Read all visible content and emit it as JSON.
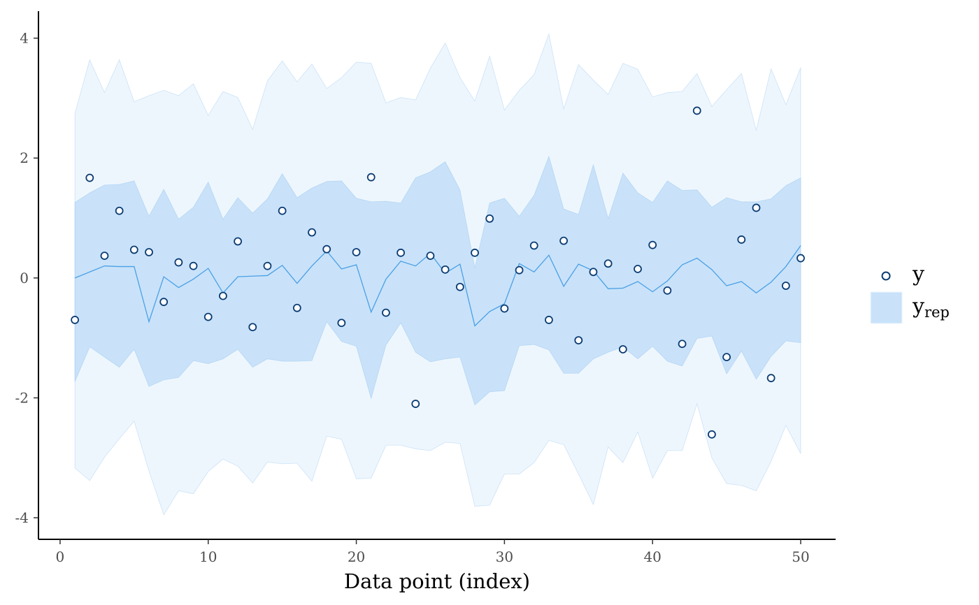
{
  "chart_data": {
    "type": "intervals",
    "xlabel": "Data point (index)",
    "xlim": [
      -1.46,
      52.36
    ],
    "xticks": [
      0,
      10,
      20,
      30,
      40,
      50
    ],
    "ylim": [
      -4.36,
      4.45
    ],
    "yticks": [
      -4,
      -2,
      0,
      2,
      4
    ],
    "x": [
      1,
      2,
      3,
      4,
      5,
      6,
      7,
      8,
      9,
      10,
      11,
      12,
      13,
      14,
      15,
      16,
      17,
      18,
      19,
      20,
      21,
      22,
      23,
      24,
      25,
      26,
      27,
      28,
      29,
      30,
      31,
      32,
      33,
      34,
      35,
      36,
      37,
      38,
      39,
      40,
      41,
      42,
      43,
      44,
      45,
      46,
      47,
      48,
      49,
      50
    ],
    "series": [
      {
        "name": "y",
        "color": "#0b3c73",
        "values": [
          -0.7,
          1.67,
          0.37,
          1.12,
          0.47,
          0.43,
          -0.4,
          0.26,
          0.2,
          -0.65,
          -0.3,
          0.61,
          -0.82,
          0.2,
          1.12,
          -0.5,
          0.76,
          0.48,
          -0.75,
          0.43,
          1.68,
          -0.58,
          0.42,
          -2.1,
          0.37,
          0.14,
          -0.15,
          0.42,
          0.99,
          -0.51,
          0.13,
          0.54,
          -0.7,
          0.62,
          -1.04,
          0.1,
          0.24,
          -1.19,
          0.15,
          0.55,
          -0.21,
          -1.1,
          2.79,
          -2.61,
          -1.32,
          0.64,
          1.17,
          -1.67,
          -0.13,
          0.33
        ]
      },
      {
        "name": "y",
        "subscript": "rep",
        "color": "#4aa0e6",
        "inner_color": "#c9e2f9",
        "outer_color": "#eef6fd",
        "median": [
          0.0,
          0.1,
          0.2,
          0.19,
          0.19,
          -0.73,
          0.02,
          -0.16,
          -0.02,
          0.16,
          -0.25,
          0.02,
          0.03,
          0.04,
          0.21,
          -0.09,
          0.2,
          0.45,
          0.15,
          0.22,
          -0.57,
          -0.02,
          0.28,
          0.2,
          0.41,
          0.08,
          0.23,
          -0.8,
          -0.56,
          -0.43,
          0.24,
          0.1,
          0.38,
          -0.14,
          0.23,
          0.12,
          -0.18,
          -0.17,
          -0.06,
          -0.23,
          -0.05,
          0.22,
          0.33,
          0.14,
          -0.13,
          -0.06,
          -0.25,
          -0.07,
          0.19,
          0.54
        ],
        "inner_upper": [
          1.26,
          1.42,
          1.55,
          1.56,
          1.62,
          1.03,
          1.48,
          0.98,
          1.18,
          1.6,
          0.98,
          1.34,
          1.08,
          1.32,
          1.74,
          1.34,
          1.5,
          1.61,
          1.62,
          1.33,
          1.27,
          1.28,
          1.25,
          1.67,
          1.77,
          1.94,
          1.47,
          0.17,
          1.25,
          1.33,
          1.03,
          1.38,
          2.03,
          1.15,
          1.06,
          1.89,
          0.99,
          1.75,
          1.42,
          1.26,
          1.62,
          1.46,
          1.47,
          1.18,
          1.34,
          1.27,
          1.27,
          1.32,
          1.54,
          1.67
        ],
        "inner_lower": [
          -1.73,
          -1.15,
          -1.32,
          -1.49,
          -1.19,
          -1.81,
          -1.7,
          -1.66,
          -1.38,
          -1.43,
          -1.35,
          -1.19,
          -1.49,
          -1.35,
          -1.39,
          -1.39,
          -1.38,
          -0.73,
          -1.06,
          -1.14,
          -2.01,
          -1.12,
          -0.75,
          -1.24,
          -1.4,
          -1.35,
          -1.32,
          -2.12,
          -1.9,
          -1.88,
          -1.13,
          -1.11,
          -1.2,
          -1.59,
          -1.59,
          -1.35,
          -1.24,
          -1.15,
          -1.35,
          -1.14,
          -1.39,
          -1.47,
          -1.01,
          -0.97,
          -1.6,
          -1.22,
          -1.69,
          -1.31,
          -1.05,
          -1.08
        ],
        "outer_upper": [
          2.74,
          3.64,
          3.09,
          3.64,
          2.94,
          3.04,
          3.13,
          3.04,
          3.24,
          2.71,
          3.11,
          3.01,
          2.48,
          3.29,
          3.62,
          3.27,
          3.57,
          3.16,
          3.34,
          3.6,
          3.58,
          2.92,
          3.01,
          2.97,
          3.5,
          3.92,
          3.34,
          2.95,
          3.7,
          2.8,
          3.13,
          3.39,
          4.07,
          2.82,
          3.56,
          3.3,
          3.06,
          3.58,
          3.48,
          3.02,
          3.09,
          3.11,
          3.41,
          2.86,
          3.14,
          3.41,
          2.46,
          3.49,
          2.89,
          3.51
        ],
        "outer_lower": [
          -3.17,
          -3.38,
          -2.99,
          -2.68,
          -2.39,
          -3.22,
          -3.95,
          -3.55,
          -3.6,
          -3.23,
          -3.02,
          -3.14,
          -3.42,
          -3.07,
          -3.1,
          -3.09,
          -3.39,
          -2.64,
          -2.69,
          -3.35,
          -3.34,
          -2.79,
          -2.79,
          -2.85,
          -2.88,
          -2.74,
          -2.76,
          -3.81,
          -3.79,
          -3.27,
          -3.27,
          -3.08,
          -2.71,
          -2.78,
          -3.27,
          -3.78,
          -2.82,
          -3.08,
          -2.57,
          -3.34,
          -2.88,
          -2.88,
          -2.1,
          -3.0,
          -3.43,
          -3.46,
          -3.55,
          -3.06,
          -2.46,
          -2.93
        ]
      }
    ]
  }
}
